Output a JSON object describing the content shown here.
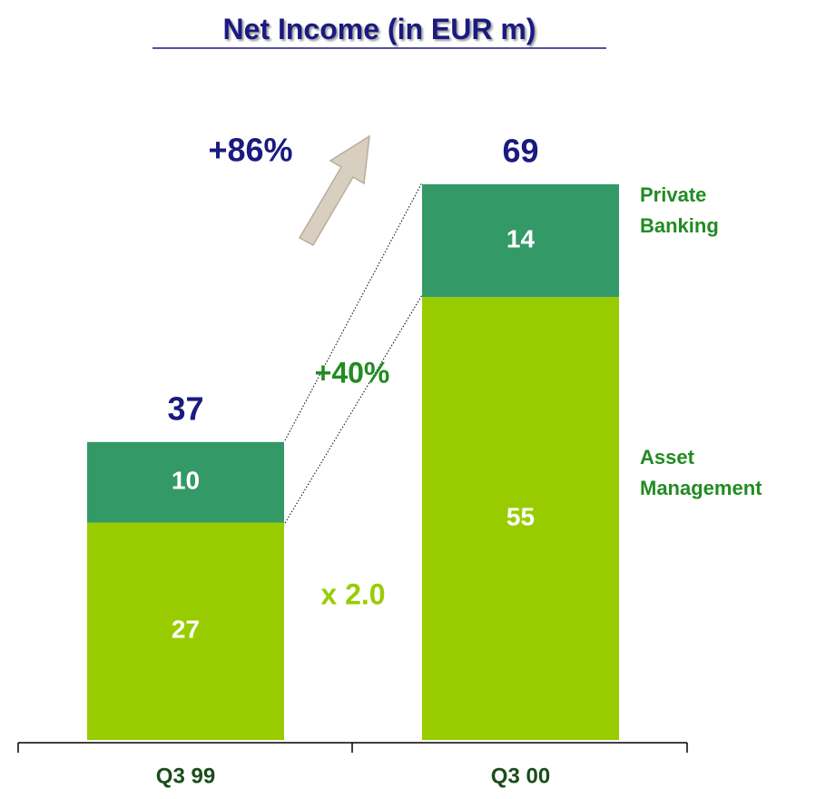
{
  "chart_data": {
    "type": "stacked-bar",
    "title": "Net Income (in EUR m)",
    "categories": [
      "Q3 99",
      "Q3 00"
    ],
    "series": [
      {
        "name": "Asset Management",
        "color": "#99cc00",
        "values": [
          27,
          55
        ]
      },
      {
        "name": "Private Banking",
        "color": "#339966",
        "values": [
          10,
          14
        ]
      }
    ],
    "totals": [
      37,
      69
    ],
    "annotations": [
      "+86%",
      "+40%",
      "x 2.0"
    ]
  }
}
